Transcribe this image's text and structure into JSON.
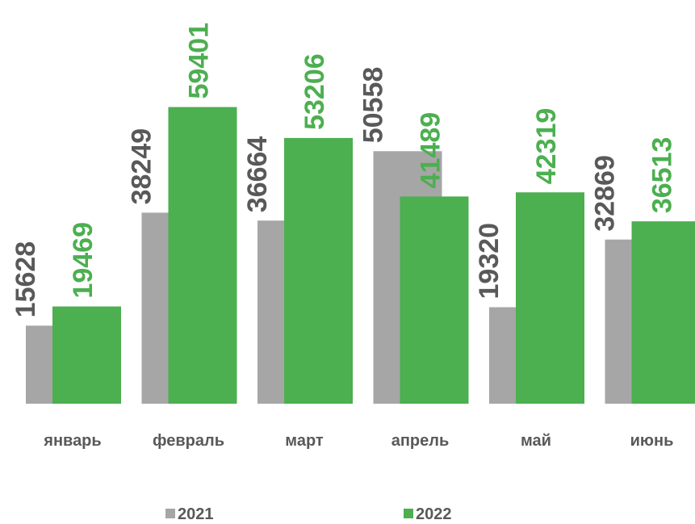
{
  "chart_data": {
    "type": "bar",
    "categories": [
      "январь",
      "февраль",
      "март",
      "апрель",
      "май",
      "июнь"
    ],
    "series": [
      {
        "name": "2021",
        "color": "#a6a6a6",
        "label_color": "#595959",
        "values": [
          15628,
          38249,
          36664,
          50558,
          19320,
          32869
        ]
      },
      {
        "name": "2022",
        "color": "#4caf50",
        "label_color": "#4caf50",
        "values": [
          19469,
          59401,
          53206,
          41489,
          42319,
          36513
        ]
      }
    ],
    "ylim": [
      0,
      70000
    ]
  }
}
